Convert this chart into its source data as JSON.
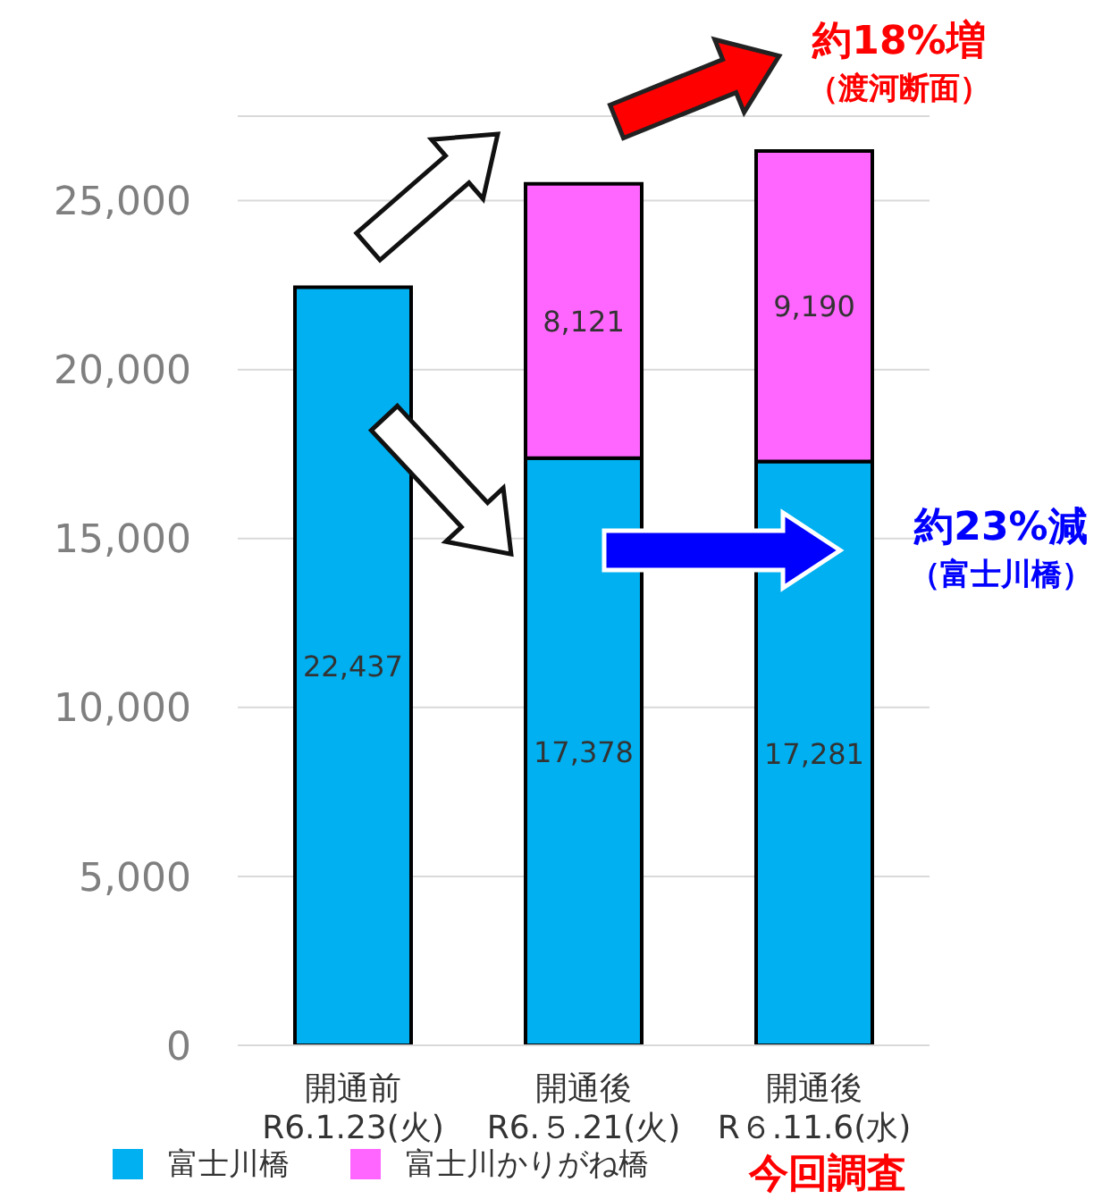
{
  "chart_data": {
    "type": "bar",
    "stacked": true,
    "categories": [
      "開通前\nR6.1.23(火)",
      "開通後\nR6.５.21(火)",
      "開通後\nR６.11.6(水)"
    ],
    "series": [
      {
        "name": "富士川橋",
        "color": "#00b0f0",
        "values": [
          22437,
          17378,
          17281
        ],
        "value_labels": [
          "22,437",
          "17,378",
          "17,281"
        ]
      },
      {
        "name": "富士川かりがね橋",
        "color": "#ff66ff",
        "values": [
          null,
          8121,
          9190
        ],
        "value_labels": [
          null,
          "8,121",
          "9,190"
        ]
      }
    ],
    "ylim": [
      0,
      27500
    ],
    "yticks": [
      0,
      {
        "value": 5000,
        "label": "5,000"
      },
      {
        "value": 10000,
        "label": "10,000"
      },
      {
        "value": 15000,
        "label": "15,000"
      },
      {
        "value": 20000,
        "label": "20,000"
      },
      {
        "value": 25000,
        "label": "25,000"
      }
    ],
    "grid": "y",
    "legend": "bottom",
    "annotations": [
      "約18%増",
      "（渡河断面）",
      "約23%減",
      "（富士川橋）",
      "今回調査"
    ]
  }
}
